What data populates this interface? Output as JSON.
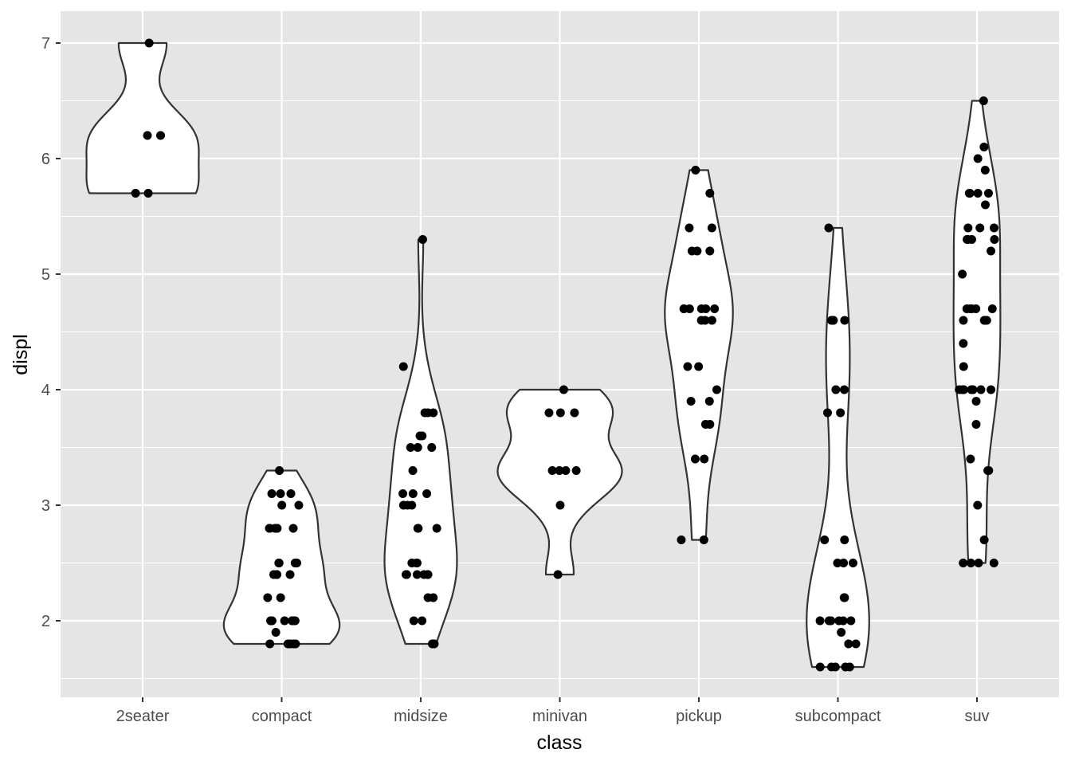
{
  "chart_data": {
    "type": "violin",
    "xlabel": "class",
    "ylabel": "displ",
    "categories": [
      "2seater",
      "compact",
      "midsize",
      "minivan",
      "pickup",
      "subcompact",
      "suv"
    ],
    "y_ticks": [
      2,
      3,
      4,
      5,
      6,
      7
    ],
    "ylim": [
      1.44,
      7.26
    ],
    "grid": true,
    "colors": {
      "panel_background": "#e5e5e5",
      "grid": "#ffffff",
      "violin_fill": "#ffffff",
      "violin_outline": "#333333",
      "points": "#000000"
    },
    "series": [
      {
        "category": "2seater",
        "values": [
          5.7,
          5.7,
          6.2,
          6.2,
          7.0
        ]
      },
      {
        "category": "compact",
        "values": [
          1.8,
          1.8,
          1.8,
          1.8,
          1.8,
          1.8,
          1.9,
          2.0,
          2.0,
          2.0,
          2.0,
          2.0,
          2.0,
          2.0,
          2.0,
          2.2,
          2.2,
          2.4,
          2.4,
          2.4,
          2.4,
          2.5,
          2.5,
          2.5,
          2.5,
          2.8,
          2.8,
          2.8,
          2.8,
          2.8,
          3.0,
          3.0,
          3.1,
          3.1,
          3.1,
          3.3
        ]
      },
      {
        "category": "midsize",
        "values": [
          1.8,
          1.8,
          2.0,
          2.0,
          2.2,
          2.2,
          2.4,
          2.4,
          2.4,
          2.4,
          2.4,
          2.4,
          2.5,
          2.5,
          2.5,
          2.8,
          2.8,
          2.8,
          3.0,
          3.0,
          3.0,
          3.1,
          3.1,
          3.1,
          3.3,
          3.5,
          3.5,
          3.5,
          3.6,
          3.6,
          3.8,
          3.8,
          3.8,
          4.2,
          5.3
        ]
      },
      {
        "category": "minivan",
        "values": [
          2.4,
          3.0,
          3.3,
          3.3,
          3.3,
          3.3,
          3.8,
          3.8,
          3.8,
          4.0
        ]
      },
      {
        "category": "pickup",
        "values": [
          2.7,
          2.7,
          3.4,
          3.4,
          3.7,
          3.7,
          3.9,
          3.9,
          4.0,
          4.2,
          4.2,
          4.6,
          4.6,
          4.6,
          4.7,
          4.7,
          4.7,
          4.7,
          4.7,
          4.7,
          5.2,
          5.2,
          5.2,
          5.4,
          5.4,
          5.7,
          5.9
        ]
      },
      {
        "category": "subcompact",
        "values": [
          1.6,
          1.6,
          1.6,
          1.6,
          1.6,
          1.8,
          1.8,
          1.9,
          2.0,
          2.0,
          2.0,
          2.0,
          2.0,
          2.0,
          2.2,
          2.2,
          2.5,
          2.5,
          2.5,
          2.7,
          2.7,
          3.8,
          3.8,
          4.0,
          4.0,
          4.6,
          4.6,
          4.6,
          4.6,
          5.4
        ]
      },
      {
        "category": "suv",
        "values": [
          2.5,
          2.5,
          2.5,
          2.5,
          2.7,
          3.0,
          3.3,
          3.3,
          3.4,
          3.7,
          3.9,
          4.0,
          4.0,
          4.0,
          4.0,
          4.0,
          4.0,
          4.0,
          4.2,
          4.4,
          4.6,
          4.6,
          4.6,
          4.6,
          4.7,
          4.7,
          4.7,
          4.7,
          4.7,
          5.0,
          5.2,
          5.3,
          5.3,
          5.3,
          5.3,
          5.4,
          5.4,
          5.4,
          5.6,
          5.7,
          5.7,
          5.7,
          5.7,
          5.9,
          6.0,
          6.1,
          6.5
        ]
      }
    ]
  }
}
